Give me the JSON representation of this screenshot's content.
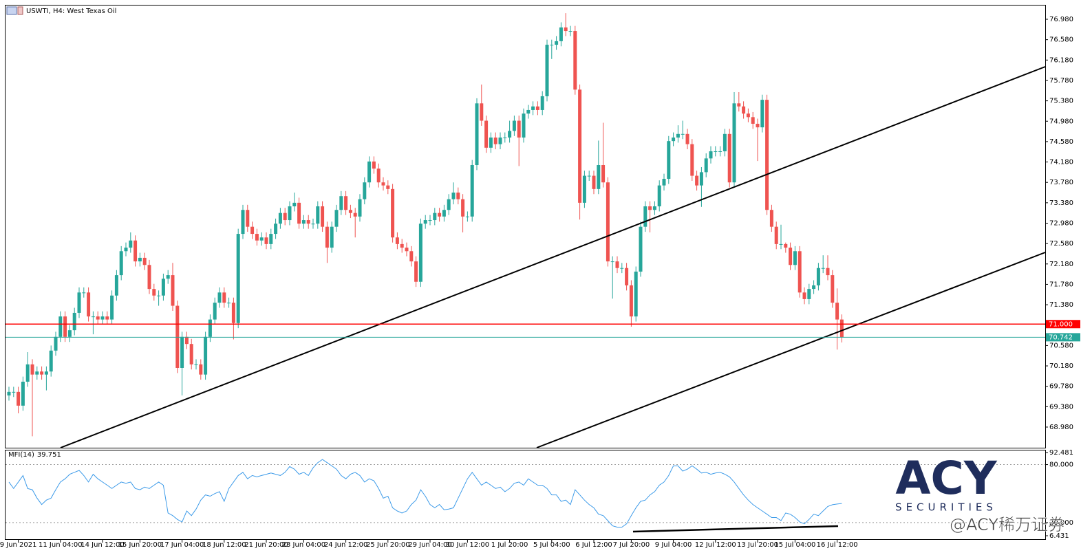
{
  "chart_data": {
    "type": "candlestick",
    "title": "USWTI, H4: West Texas Oil",
    "categories": [
      null,
      null,
      "9 Jun 2021",
      null,
      null,
      null,
      null,
      null,
      null,
      null,
      null,
      "11 Jun 04:00",
      null,
      null,
      null,
      null,
      null,
      null,
      null,
      null,
      "14 Jun 12:00",
      null,
      null,
      null,
      null,
      null,
      null,
      null,
      "15 Jun 20:00",
      null,
      null,
      null,
      null,
      null,
      null,
      null,
      null,
      "17 Jun 04:00",
      null,
      null,
      null,
      null,
      null,
      null,
      null,
      null,
      "18 Jun 12:00",
      null,
      null,
      null,
      null,
      null,
      null,
      null,
      null,
      "21 Jun 20:00",
      null,
      null,
      null,
      null,
      null,
      null,
      null,
      "23 Jun 04:00",
      null,
      null,
      null,
      null,
      null,
      null,
      null,
      null,
      "24 Jun 12:00",
      null,
      null,
      null,
      null,
      null,
      null,
      null,
      null,
      "25 Jun 20:00",
      null,
      null,
      null,
      null,
      null,
      null,
      null,
      null,
      "29 Jun 04:00",
      null,
      null,
      null,
      null,
      null,
      null,
      null,
      "30 Jun 12:00",
      null,
      null,
      null,
      null,
      null,
      null,
      null,
      null,
      "1 Jul 20:00",
      null,
      null,
      null,
      null,
      null,
      null,
      null,
      null,
      "5 Jul 04:00",
      null,
      null,
      null,
      null,
      null,
      null,
      null,
      null,
      "6 Jul 12:00",
      null,
      null,
      null,
      null,
      null,
      null,
      null,
      "7 Jul 20:00",
      null,
      null,
      null,
      null,
      null,
      null,
      null,
      null,
      "9 Jul 04:00",
      null,
      null,
      null,
      null,
      null,
      null,
      null,
      null,
      "12 Jul 12:00",
      null,
      null,
      null,
      null,
      null,
      null,
      null,
      null,
      "13 Jul 20:00",
      null,
      null,
      null,
      null,
      null,
      null,
      null,
      "15 Jul 04:00",
      null,
      null,
      null,
      null,
      null,
      null,
      null,
      null,
      "16 Jul 12:00",
      null
    ],
    "open": [
      69.6,
      69.67,
      69.67,
      69.4,
      69.87,
      70.21,
      70.01,
      70.07,
      70.01,
      70.07,
      70.48,
      70.75,
      71.15,
      70.75,
      70.88,
      71.22,
      71.62,
      71.62,
      71.15,
      71.15,
      71.09,
      71.15,
      71.09,
      71.56,
      71.96,
      72.43,
      72.5,
      72.64,
      72.23,
      72.3,
      72.16,
      71.69,
      71.56,
      71.56,
      71.89,
      71.96,
      71.36,
      70.14,
      70.75,
      70.61,
      70.21,
      70.21,
      70.01,
      70.75,
      71.09,
      71.42,
      71.62,
      71.42,
      71.42,
      71.02,
      72.77,
      73.24,
      72.91,
      72.77,
      72.64,
      72.7,
      72.57,
      72.77,
      72.97,
      73.18,
      73.04,
      73.31,
      73.38,
      72.97,
      73.04,
      72.97,
      72.97,
      73.31,
      72.91,
      72.5,
      72.91,
      73.24,
      73.51,
      73.24,
      73.18,
      73.11,
      73.45,
      73.78,
      74.19,
      74.05,
      73.78,
      73.72,
      73.65,
      72.7,
      72.57,
      72.5,
      72.43,
      72.23,
      71.83,
      72.97,
      73.04,
      73.04,
      73.18,
      73.11,
      73.24,
      73.45,
      73.58,
      73.45,
      73.11,
      73.11,
      74.12,
      75.33,
      74.99,
      74.46,
      74.66,
      74.53,
      74.66,
      74.66,
      74.79,
      74.99,
      74.66,
      75.13,
      75.2,
      75.27,
      75.2,
      75.47,
      76.48,
      76.48,
      76.55,
      76.82,
      76.75,
      76.75,
      75.6,
      73.38,
      73.91,
      73.91,
      73.65,
      74.12,
      73.78,
      72.23,
      72.23,
      72.1,
      72.1,
      71.76,
      71.15,
      72.03,
      72.91,
      73.31,
      73.24,
      73.31,
      73.72,
      73.85,
      74.59,
      74.66,
      74.73,
      74.73,
      74.53,
      73.91,
      73.72,
      73.98,
      74.25,
      74.39,
      74.39,
      74.39,
      74.73,
      73.78,
      75.33,
      75.27,
      75.13,
      75.06,
      74.93,
      74.86,
      75.4,
      73.24,
      72.91,
      72.57,
      72.57,
      72.5,
      72.16,
      72.43,
      71.62,
      71.49,
      71.69,
      71.76,
      72.1,
      72.1,
      71.96,
      71.42,
      71.09
    ],
    "high": [
      69.77,
      69.77,
      69.77,
      69.97,
      70.45,
      70.31,
      70.17,
      70.17,
      70.17,
      70.58,
      70.85,
      71.25,
      71.25,
      70.98,
      71.32,
      71.72,
      71.72,
      71.72,
      71.25,
      71.25,
      71.25,
      71.25,
      71.66,
      72.06,
      72.53,
      72.6,
      72.8,
      72.74,
      72.4,
      72.4,
      72.26,
      71.79,
      71.66,
      71.99,
      72.06,
      72.2,
      71.46,
      70.85,
      70.85,
      70.71,
      70.31,
      70.31,
      70.85,
      71.19,
      71.52,
      71.72,
      71.72,
      71.52,
      71.52,
      72.87,
      73.34,
      73.34,
      73.01,
      72.87,
      72.8,
      72.8,
      72.87,
      73.07,
      73.28,
      73.28,
      73.41,
      73.58,
      73.48,
      73.14,
      73.14,
      73.07,
      73.41,
      73.41,
      73.01,
      73.01,
      73.34,
      73.61,
      73.61,
      73.34,
      73.28,
      73.55,
      73.88,
      74.29,
      74.29,
      74.15,
      73.88,
      73.82,
      73.75,
      72.8,
      72.67,
      72.6,
      72.53,
      72.33,
      73.07,
      73.14,
      73.14,
      73.28,
      73.28,
      73.34,
      73.55,
      73.78,
      73.68,
      73.55,
      73.21,
      74.22,
      75.43,
      75.7,
      75.09,
      74.76,
      74.76,
      74.76,
      74.76,
      74.99,
      75.09,
      75.09,
      75.23,
      75.3,
      75.37,
      75.37,
      75.57,
      76.58,
      76.58,
      76.65,
      76.92,
      77.1,
      76.85,
      76.85,
      75.7,
      74.01,
      74.01,
      74.01,
      74.6,
      74.95,
      73.88,
      72.33,
      72.33,
      72.2,
      72.2,
      71.86,
      72.13,
      73.01,
      73.41,
      73.41,
      73.41,
      73.82,
      73.95,
      74.69,
      74.76,
      74.9,
      74.99,
      74.83,
      74.63,
      74.01,
      74.08,
      74.35,
      74.49,
      74.49,
      74.49,
      74.83,
      74.83,
      75.55,
      75.55,
      75.37,
      75.23,
      75.16,
      75.03,
      75.5,
      75.5,
      73.34,
      73.01,
      72.95,
      72.6,
      72.6,
      72.53,
      72.53,
      71.72,
      71.79,
      71.86,
      72.2,
      72.35,
      72.35,
      72.06,
      71.7,
      71.19
    ],
    "low": [
      69.5,
      69.57,
      69.25,
      69.3,
      69.77,
      68.8,
      69.91,
      69.91,
      69.7,
      69.97,
      70.38,
      70.65,
      70.65,
      70.65,
      70.78,
      71.12,
      71.52,
      71.05,
      70.8,
      70.99,
      70.99,
      70.99,
      70.99,
      71.46,
      71.86,
      72.33,
      72.4,
      72.13,
      72.13,
      72.06,
      71.59,
      71.46,
      71.36,
      71.46,
      71.79,
      71.26,
      70.04,
      69.6,
      70.51,
      70.11,
      70.11,
      69.91,
      69.91,
      70.65,
      70.99,
      71.32,
      71.32,
      71.32,
      70.7,
      70.92,
      72.67,
      72.81,
      72.67,
      72.54,
      72.54,
      72.47,
      72.47,
      72.67,
      72.87,
      72.94,
      72.94,
      73.21,
      72.87,
      72.87,
      72.87,
      72.87,
      72.87,
      72.81,
      72.2,
      72.4,
      72.81,
      73.14,
      73.14,
      73.08,
      72.7,
      73.01,
      73.35,
      73.68,
      73.95,
      73.68,
      73.62,
      73.55,
      72.6,
      72.47,
      72.4,
      72.33,
      72.13,
      71.73,
      71.73,
      72.87,
      72.94,
      72.94,
      73.01,
      73.01,
      73.14,
      73.35,
      73.35,
      72.8,
      73.01,
      73.01,
      74.02,
      74.89,
      74.36,
      74.36,
      74.43,
      74.43,
      74.56,
      74.56,
      74.69,
      74.1,
      74.56,
      75.03,
      75.1,
      75.1,
      75.1,
      75.37,
      76.2,
      76.38,
      76.45,
      76.65,
      76.65,
      75.5,
      73.05,
      73.28,
      73.81,
      73.55,
      73.55,
      73.68,
      72.13,
      71.5,
      72.0,
      72.0,
      71.66,
      70.95,
      71.05,
      71.93,
      72.81,
      72.8,
      73.14,
      73.21,
      73.62,
      73.75,
      74.49,
      74.56,
      74.63,
      74.43,
      73.81,
      73.62,
      73.3,
      73.88,
      74.15,
      74.29,
      74.29,
      74.29,
      73.68,
      73.68,
      75.17,
      75.03,
      74.96,
      74.83,
      74.2,
      74.76,
      73.14,
      72.81,
      72.47,
      72.47,
      72.4,
      72.06,
      72.06,
      71.52,
      71.39,
      71.39,
      71.59,
      71.66,
      72.0,
      71.86,
      71.32,
      70.5,
      70.64
    ],
    "close": [
      69.67,
      69.67,
      69.4,
      69.87,
      70.21,
      70.01,
      70.07,
      70.01,
      70.07,
      70.48,
      70.75,
      71.15,
      70.75,
      70.88,
      71.22,
      71.62,
      71.62,
      71.15,
      71.15,
      71.09,
      71.15,
      71.09,
      71.56,
      71.96,
      72.43,
      72.5,
      72.64,
      72.23,
      72.3,
      72.16,
      71.69,
      71.56,
      71.56,
      71.89,
      71.96,
      71.36,
      70.14,
      70.75,
      70.61,
      70.21,
      70.21,
      70.01,
      70.75,
      71.09,
      71.42,
      71.62,
      71.42,
      71.42,
      71.02,
      72.77,
      73.24,
      72.91,
      72.77,
      72.64,
      72.7,
      72.57,
      72.77,
      72.97,
      73.18,
      73.04,
      73.31,
      73.38,
      72.97,
      73.04,
      72.97,
      72.97,
      73.31,
      72.91,
      72.5,
      72.91,
      73.24,
      73.51,
      73.24,
      73.18,
      73.11,
      73.45,
      73.78,
      74.19,
      74.05,
      73.78,
      73.72,
      73.65,
      72.7,
      72.57,
      72.5,
      72.43,
      72.23,
      71.83,
      72.97,
      73.04,
      73.04,
      73.18,
      73.11,
      73.24,
      73.45,
      73.58,
      73.45,
      73.11,
      73.11,
      74.12,
      75.33,
      74.99,
      74.46,
      74.66,
      74.53,
      74.66,
      74.66,
      74.79,
      74.99,
      74.66,
      75.13,
      75.2,
      75.27,
      75.2,
      75.47,
      76.48,
      76.48,
      76.55,
      76.82,
      76.75,
      76.75,
      75.6,
      73.38,
      73.91,
      73.91,
      73.65,
      74.12,
      73.78,
      72.23,
      72.23,
      72.1,
      72.1,
      71.76,
      71.15,
      72.03,
      72.91,
      73.31,
      73.24,
      73.31,
      73.72,
      73.85,
      74.59,
      74.66,
      74.73,
      74.73,
      74.53,
      73.91,
      73.72,
      73.98,
      74.25,
      74.39,
      74.39,
      74.39,
      74.73,
      73.78,
      75.33,
      75.27,
      75.13,
      75.06,
      74.93,
      74.86,
      75.4,
      73.24,
      72.91,
      72.57,
      72.57,
      72.5,
      72.16,
      72.43,
      71.62,
      71.49,
      71.69,
      71.76,
      72.1,
      72.1,
      71.96,
      71.42,
      71.09,
      70.74
    ],
    "up_color": "#26a69a",
    "down_color": "#ef5350",
    "ylim": [
      68.575,
      77.25
    ],
    "yticks": [
      {
        "value": 68.98,
        "label": "68.980"
      },
      {
        "value": 69.38,
        "label": "69.380"
      },
      {
        "value": 69.78,
        "label": "69.780"
      },
      {
        "value": 70.18,
        "label": "70.180"
      },
      {
        "value": 70.58,
        "label": "70.580"
      },
      {
        "value": 71.38,
        "label": "71.380"
      },
      {
        "value": 71.78,
        "label": "71.780"
      },
      {
        "value": 72.18,
        "label": "72.180"
      },
      {
        "value": 72.58,
        "label": "72.580"
      },
      {
        "value": 72.98,
        "label": "72.980"
      },
      {
        "value": 73.38,
        "label": "73.380"
      },
      {
        "value": 73.78,
        "label": "73.780"
      },
      {
        "value": 74.18,
        "label": "74.180"
      },
      {
        "value": 74.58,
        "label": "74.580"
      },
      {
        "value": 74.98,
        "label": "74.980"
      },
      {
        "value": 75.38,
        "label": "75.380"
      },
      {
        "value": 75.78,
        "label": "75.780"
      },
      {
        "value": 76.18,
        "label": "76.180"
      },
      {
        "value": 76.58,
        "label": "76.580"
      },
      {
        "value": 76.98,
        "label": "76.980"
      }
    ],
    "hlines": [
      {
        "value": 71.0,
        "label": "71.000",
        "color": "#ff0000"
      },
      {
        "value": 70.742,
        "label": "70.742",
        "color": "#26a69a"
      }
    ],
    "mfi": {
      "name": "MFI(14)",
      "color": "#3d9be9",
      "values": [
        62.0,
        55.3,
        62.0,
        68.7,
        55.3,
        54.0,
        45.3,
        38.7,
        43.3,
        45.3,
        54.0,
        62.0,
        65.3,
        70.0,
        72.0,
        74.0,
        68.7,
        62.0,
        70.0,
        65.3,
        62.0,
        58.7,
        55.3,
        58.7,
        62.0,
        60.7,
        62.0,
        55.3,
        54.0,
        56.7,
        55.3,
        58.7,
        62.0,
        58.7,
        30.0,
        27.3,
        23.3,
        20.7,
        32.0,
        27.3,
        34.0,
        43.3,
        48.7,
        47.3,
        50.0,
        52.0,
        42.0,
        55.3,
        62.0,
        68.7,
        72.0,
        65.3,
        68.7,
        67.3,
        68.7,
        70.0,
        71.3,
        70.0,
        68.7,
        72.0,
        78.0,
        75.3,
        70.0,
        72.0,
        68.7,
        76.7,
        82.0,
        85.3,
        82.0,
        78.7,
        75.3,
        68.7,
        65.3,
        70.0,
        72.0,
        68.7,
        62.0,
        65.3,
        63.3,
        55.3,
        45.3,
        47.3,
        35.3,
        32.0,
        30.0,
        32.0,
        38.7,
        43.3,
        54.0,
        47.3,
        38.7,
        35.3,
        38.7,
        33.3,
        34.0,
        35.3,
        45.3,
        55.3,
        65.3,
        72.0,
        65.3,
        58.7,
        62.0,
        58.7,
        55.3,
        56.7,
        52.0,
        55.3,
        60.7,
        62.0,
        58.7,
        65.3,
        62.0,
        58.7,
        58.7,
        55.3,
        48.7,
        48.7,
        42.0,
        43.3,
        38.7,
        54.0,
        48.7,
        43.3,
        38.7,
        35.3,
        28.7,
        27.3,
        22.0,
        16.7,
        15.3,
        15.3,
        18.7,
        27.3,
        35.3,
        42.0,
        43.3,
        48.7,
        52.0,
        58.7,
        62.0,
        68.7,
        78.7,
        78.7,
        73.3,
        75.3,
        78.7,
        75.3,
        71.3,
        72.0,
        70.0,
        71.3,
        72.0,
        70.0,
        67.3,
        62.0,
        55.3,
        48.7,
        43.3,
        38.7,
        35.3,
        32.0,
        28.7,
        25.3,
        25.3,
        22.0,
        30.0,
        28.7,
        25.3,
        20.7,
        18.7,
        23.3,
        28.7,
        27.3,
        32.0,
        36.7,
        38.5,
        39.2,
        39.751
      ],
      "ylim": [
        6.431,
        92.481
      ],
      "yticks": [
        {
          "value": 92.481,
          "label": "92.481"
        },
        {
          "value": 80,
          "label": "80.000"
        },
        {
          "value": 20,
          "label": "20.000"
        },
        {
          "value": 6.431,
          "label": "6.431"
        }
      ],
      "levels": [
        80,
        20
      ]
    }
  },
  "watermark": {
    "logo": "ACY",
    "sub": "SECURITIES",
    "text": "@ACY稀万证券"
  }
}
